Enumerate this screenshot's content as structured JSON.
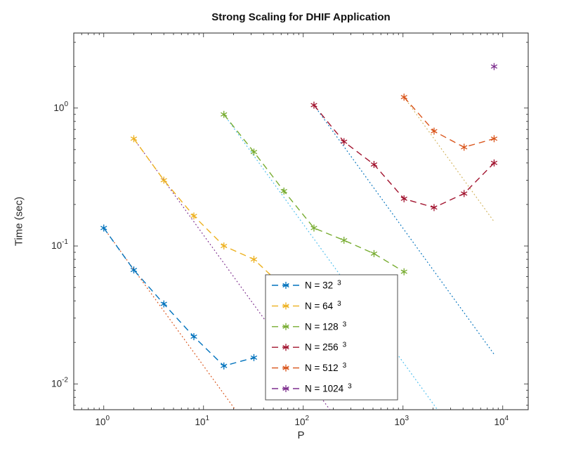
{
  "chart_data": {
    "type": "line",
    "title": "Strong Scaling for DHIF Application",
    "xlabel": "P",
    "ylabel": "Time (sec)",
    "x_scale": "log",
    "y_scale": "log",
    "xlim": [
      0.5,
      18000
    ],
    "ylim": [
      0.0065,
      3.5
    ],
    "grid": false,
    "legend_position": "inside lower right",
    "axis_color": "#262626",
    "x_ticks": [
      {
        "base": "10",
        "exp": "0",
        "value": 1
      },
      {
        "base": "10",
        "exp": "1",
        "value": 10
      },
      {
        "base": "10",
        "exp": "2",
        "value": 100
      },
      {
        "base": "10",
        "exp": "3",
        "value": 1000
      },
      {
        "base": "10",
        "exp": "4",
        "value": 10000
      }
    ],
    "y_ticks": [
      {
        "base": "10",
        "exp": "-2",
        "value": 0.01
      },
      {
        "base": "10",
        "exp": "-1",
        "value": 0.1
      },
      {
        "base": "10",
        "exp": "0",
        "value": 1
      }
    ],
    "series": [
      {
        "name": "N = 32",
        "exponent": "3",
        "color": "#0072BD",
        "linestyle": "dashed",
        "marker": "asterisk",
        "x": [
          1,
          2,
          4,
          8,
          16,
          32
        ],
        "y": [
          0.135,
          0.067,
          0.038,
          0.022,
          0.0135,
          0.0155
        ]
      },
      {
        "name": "N = 64",
        "exponent": "3",
        "color": "#EDB120",
        "linestyle": "dashed",
        "marker": "asterisk",
        "x": [
          2,
          4,
          8,
          16,
          32,
          64,
          128,
          256
        ],
        "y": [
          0.6,
          0.3,
          0.165,
          0.1,
          0.08,
          0.05,
          0.034,
          0.038
        ]
      },
      {
        "name": "N = 128",
        "exponent": "3",
        "color": "#77AC30",
        "linestyle": "dashed",
        "marker": "asterisk",
        "x": [
          16,
          32,
          64,
          128,
          256,
          512,
          1024
        ],
        "y": [
          0.9,
          0.48,
          0.25,
          0.135,
          0.11,
          0.088,
          0.065
        ]
      },
      {
        "name": "N = 256",
        "exponent": "3",
        "color": "#A2142F",
        "linestyle": "dashed",
        "marker": "asterisk",
        "x": [
          128,
          256,
          512,
          1024,
          2048,
          4096,
          8192
        ],
        "y": [
          1.05,
          0.57,
          0.39,
          0.22,
          0.19,
          0.24,
          0.4
        ]
      },
      {
        "name": "N = 512",
        "exponent": "3",
        "color": "#D95319",
        "linestyle": "dashed",
        "marker": "asterisk",
        "x": [
          1024,
          2048,
          4096,
          8192
        ],
        "y": [
          1.2,
          0.68,
          0.52,
          0.6
        ]
      },
      {
        "name": "N = 1024",
        "exponent": "3",
        "color": "#7E2F8E",
        "linestyle": "dashed",
        "marker": "asterisk",
        "x": [
          8192
        ],
        "y": [
          2.0
        ]
      }
    ],
    "ideal_lines": [
      {
        "name": "ideal-scaling-32",
        "color": "#D95319",
        "x": [
          1,
          20.8
        ],
        "y": [
          0.135,
          0.0065
        ]
      },
      {
        "name": "ideal-scaling-64",
        "color": "#7E2F8E",
        "x": [
          2,
          184.6
        ],
        "y": [
          0.6,
          0.0065
        ]
      },
      {
        "name": "ideal-scaling-128",
        "color": "#4DBEEE",
        "x": [
          16,
          2215
        ],
        "y": [
          0.9,
          0.0065
        ]
      },
      {
        "name": "ideal-scaling-256",
        "color": "#0072BD",
        "x": [
          128,
          8192
        ],
        "y": [
          1.05,
          0.0164
        ]
      },
      {
        "name": "ideal-scaling-512",
        "color": "#D2B35C",
        "x": [
          1024,
          8192
        ],
        "y": [
          1.2,
          0.15
        ]
      }
    ]
  }
}
